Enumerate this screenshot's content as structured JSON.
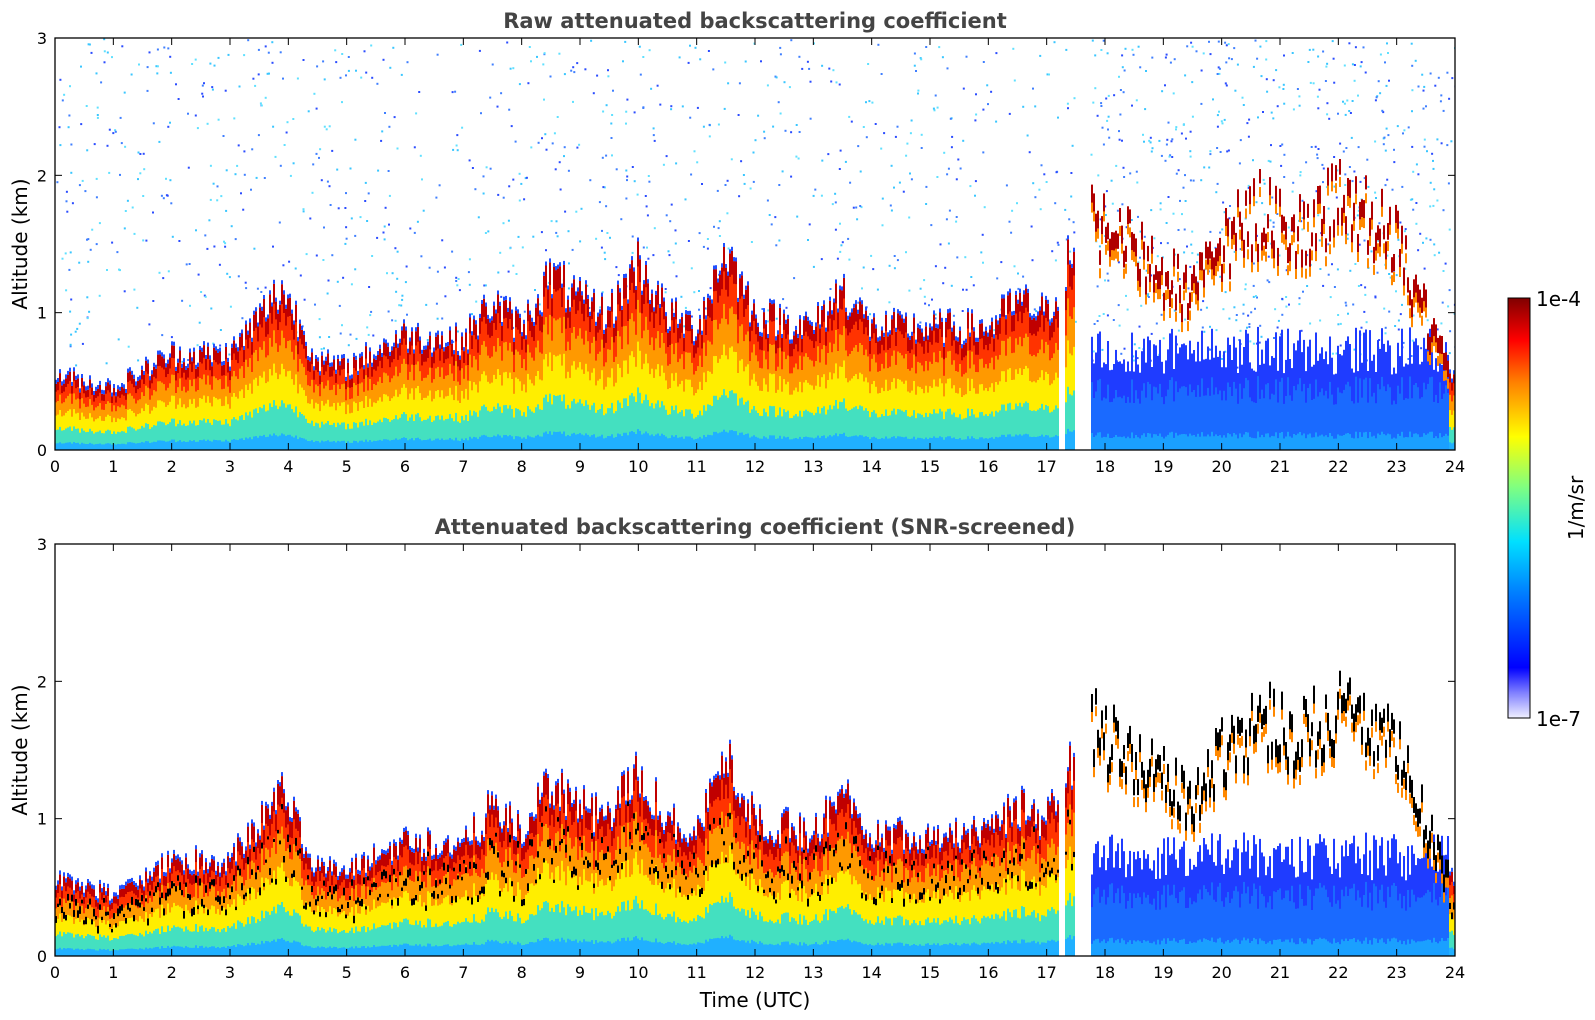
{
  "chart_data": [
    {
      "type": "heatmap",
      "title": "Raw attenuated backscattering coefficient",
      "xlabel": "",
      "ylabel": "Altitude (km)",
      "xlim": [
        0,
        24
      ],
      "ylim": [
        0,
        3
      ],
      "xticks": [
        "0",
        "1",
        "2",
        "3",
        "4",
        "5",
        "6",
        "7",
        "8",
        "9",
        "10",
        "11",
        "12",
        "13",
        "14",
        "15",
        "16",
        "17",
        "18",
        "19",
        "20",
        "21",
        "22",
        "23",
        "24"
      ],
      "yticks": [
        "0",
        "1",
        "2",
        "3"
      ],
      "colorscale": "log 1e-7 to 1e-4 (jet)",
      "screened": false,
      "data_gap_hours": [
        [
          17.2,
          17.3
        ],
        [
          17.5,
          17.75
        ]
      ],
      "boundary_layer_top_km": [
        [
          0,
          0.55
        ],
        [
          1,
          0.45
        ],
        [
          2,
          0.7
        ],
        [
          3,
          0.7
        ],
        [
          3.9,
          1.2
        ],
        [
          4.5,
          0.65
        ],
        [
          5,
          0.6
        ],
        [
          6,
          0.85
        ],
        [
          7,
          0.8
        ],
        [
          7.5,
          1.1
        ],
        [
          8,
          0.9
        ],
        [
          8.5,
          1.3
        ],
        [
          9,
          1.1
        ],
        [
          9.5,
          1.0
        ],
        [
          10,
          1.4
        ],
        [
          10.5,
          1.0
        ],
        [
          11,
          0.9
        ],
        [
          11.5,
          1.5
        ],
        [
          12,
          1.0
        ],
        [
          13,
          0.9
        ],
        [
          13.5,
          1.2
        ],
        [
          14,
          0.9
        ],
        [
          15,
          0.9
        ],
        [
          16,
          0.9
        ],
        [
          16.5,
          1.1
        ],
        [
          17,
          1.0
        ],
        [
          17.75,
          1.8
        ],
        [
          18.5,
          1.55
        ],
        [
          19.5,
          1.2
        ],
        [
          20,
          1.6
        ],
        [
          20.7,
          1.85
        ],
        [
          21.3,
          1.7
        ],
        [
          22,
          1.9
        ],
        [
          22.5,
          1.8
        ],
        [
          23,
          1.6
        ],
        [
          24,
          0.5
        ]
      ]
    },
    {
      "type": "heatmap",
      "title": "Attenuated backscattering coefficient (SNR-screened)",
      "xlabel": "Time (UTC)",
      "ylabel": "Altitude (km)",
      "xlim": [
        0,
        24
      ],
      "ylim": [
        0,
        3
      ],
      "xticks": [
        "0",
        "1",
        "2",
        "3",
        "4",
        "5",
        "6",
        "7",
        "8",
        "9",
        "10",
        "11",
        "12",
        "13",
        "14",
        "15",
        "16",
        "17",
        "18",
        "19",
        "20",
        "21",
        "22",
        "23",
        "24"
      ],
      "yticks": [
        "0",
        "1",
        "2",
        "3"
      ],
      "colorscale": "log 1e-7 to 1e-4 (jet)",
      "screened": true,
      "data_gap_hours": [
        [
          17.2,
          17.3
        ],
        [
          17.5,
          17.75
        ]
      ],
      "boundary_layer_top_km": [
        [
          0,
          0.55
        ],
        [
          1,
          0.45
        ],
        [
          2,
          0.7
        ],
        [
          3,
          0.7
        ],
        [
          3.9,
          1.2
        ],
        [
          4.5,
          0.65
        ],
        [
          5,
          0.6
        ],
        [
          6,
          0.85
        ],
        [
          7,
          0.8
        ],
        [
          7.5,
          1.1
        ],
        [
          8,
          0.9
        ],
        [
          8.5,
          1.3
        ],
        [
          9,
          1.1
        ],
        [
          9.5,
          1.0
        ],
        [
          10,
          1.4
        ],
        [
          10.5,
          1.0
        ],
        [
          11,
          0.9
        ],
        [
          11.5,
          1.5
        ],
        [
          12,
          1.0
        ],
        [
          13,
          0.9
        ],
        [
          13.5,
          1.2
        ],
        [
          14,
          0.9
        ],
        [
          15,
          0.9
        ],
        [
          16,
          0.9
        ],
        [
          16.5,
          1.1
        ],
        [
          17,
          1.0
        ],
        [
          17.75,
          1.8
        ],
        [
          18.5,
          1.55
        ],
        [
          19.5,
          1.2
        ],
        [
          20,
          1.6
        ],
        [
          20.7,
          1.85
        ],
        [
          21.3,
          1.7
        ],
        [
          22,
          1.9
        ],
        [
          22.5,
          1.8
        ],
        [
          23,
          1.6
        ],
        [
          24,
          0.5
        ]
      ]
    }
  ],
  "colorbar": {
    "max_label": "1e-4",
    "min_label": "1e-7",
    "unit_label": "1/m/sr",
    "colors": [
      "#7f0000",
      "#ff0000",
      "#ff8800",
      "#ffff00",
      "#80ff80",
      "#00ffff",
      "#0088ff",
      "#0000ff",
      "#e8e8ff"
    ]
  }
}
